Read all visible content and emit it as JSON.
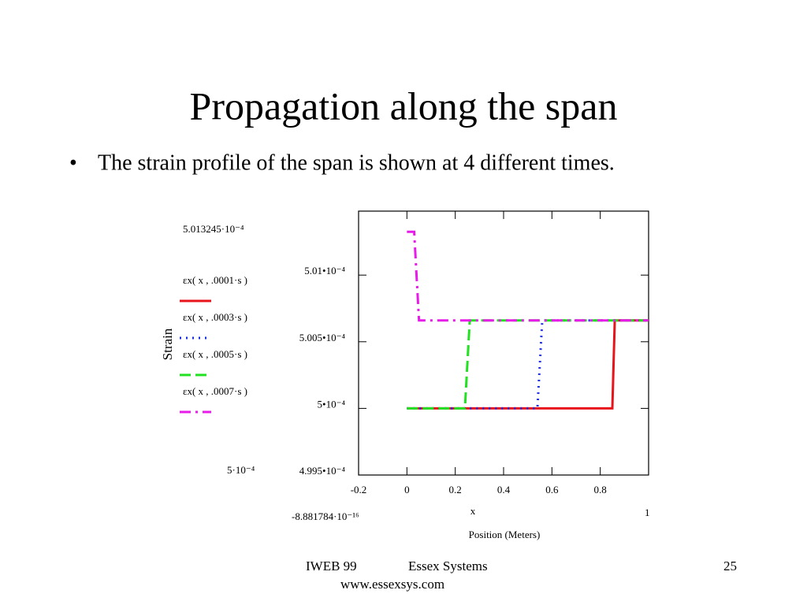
{
  "slide": {
    "title": "Propagation along the span",
    "bullet": "The strain profile of the span is shown at 4 different times.",
    "footer": {
      "left": "IWEB 99",
      "center": "Essex Systems",
      "url": "www.essexsys.com",
      "page": "25"
    }
  },
  "chart_data": {
    "type": "line",
    "ylabel": "Strain",
    "xlabel": "Position (Meters)",
    "xvar": "x",
    "axis_limit_labels": {
      "ymax": "5.013245·10⁻⁴",
      "ymin": "5·10⁻⁴",
      "xmin": "-8.881784·10⁻¹⁶",
      "xmax": "1"
    },
    "xlim": [
      -0.2,
      1
    ],
    "ylim": [
      0.0004995,
      0.00050148
    ],
    "xticks": [
      -0.2,
      0,
      0.2,
      0.4,
      0.6,
      0.8
    ],
    "yticks": [
      {
        "value": 0.0004995,
        "label": "4.995•10⁻⁴"
      },
      {
        "value": 0.0005,
        "label": "5•10⁻⁴"
      },
      {
        "value": 0.0005005,
        "label": "5.005•10⁻⁴"
      },
      {
        "value": 0.000501,
        "label": "5.01•10⁻⁴"
      }
    ],
    "grid": false,
    "series": [
      {
        "name": "εx( x , .0001·s )",
        "color": "#e8141c",
        "dash": "solid",
        "x": [
          0,
          0.85,
          0.86,
          1
        ],
        "values": [
          0.0005,
          0.0005,
          0.00050066,
          0.00050066
        ]
      },
      {
        "name": "εx( x , .0003·s )",
        "color": "#1a2ee8",
        "dash": "dotted",
        "x": [
          0,
          0.54,
          0.56,
          1
        ],
        "values": [
          0.0005,
          0.0005,
          0.00050066,
          0.00050066
        ]
      },
      {
        "name": "εx( x , .0005·s )",
        "color": "#22e022",
        "dash": "dashed",
        "x": [
          0,
          0.24,
          0.26,
          1
        ],
        "values": [
          0.0005,
          0.0005,
          0.00050066,
          0.00050066
        ]
      },
      {
        "name": "εx( x , .0007·s )",
        "color": "#e81ce8",
        "dash": "dashdot",
        "x": [
          0,
          0.03,
          0.05,
          1
        ],
        "values": [
          0.0005013245,
          0.0005013245,
          0.00050066,
          0.00050066
        ]
      }
    ]
  }
}
